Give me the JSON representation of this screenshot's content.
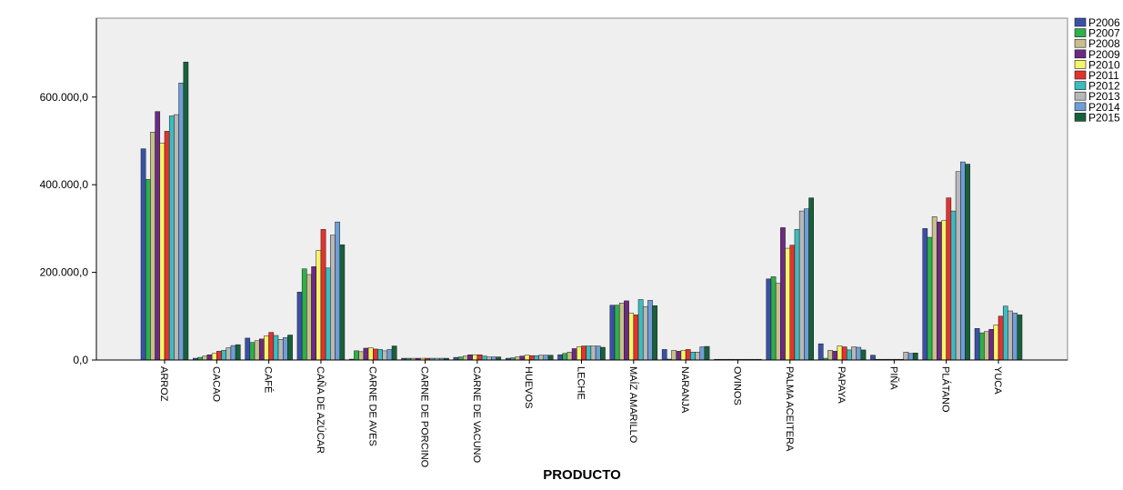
{
  "chart_data": {
    "type": "bar",
    "title": "",
    "xlabel": "PRODUCTO",
    "ylabel": "",
    "ylim": [
      0,
      780000
    ],
    "yticks": [
      0,
      200000,
      400000,
      600000
    ],
    "ytick_labels": [
      "0,0",
      "200.000,0",
      "400.000,0",
      "600.000,0"
    ],
    "grid": false,
    "legend_position": "top-right",
    "categories": [
      "ARROZ",
      "CACAO",
      "CAFÉ",
      "CAÑA DE AZÚCAR",
      "CARNE DE AVES",
      "CARNE DE PORCINO",
      "CARNE DE VACUNO",
      "HUEVOS",
      "LECHE",
      "MAÍZ AMARILLO",
      "NARANJA",
      "OVINOS",
      "PALMA ACEITERA",
      "PAPAYA",
      "PIÑA",
      "PLÁTANO",
      "YUCA"
    ],
    "series": [
      {
        "name": "P2006",
        "color": "#3a50a8",
        "values": [
          482000,
          4000,
          50000,
          155000,
          2000,
          4000,
          6000,
          4000,
          12000,
          125000,
          24000,
          1000,
          185000,
          37000,
          11000,
          300000,
          72000
        ]
      },
      {
        "name": "P2007",
        "color": "#2db04a",
        "values": [
          412000,
          6000,
          40000,
          208000,
          21000,
          4000,
          7000,
          5000,
          15000,
          125000,
          2000,
          1000,
          190000,
          4000,
          1000,
          280000,
          62000
        ]
      },
      {
        "name": "P2008",
        "color": "#c6c08e",
        "values": [
          520000,
          9000,
          44000,
          195000,
          19000,
          4000,
          9000,
          7000,
          18000,
          130000,
          22000,
          1000,
          175000,
          22000,
          1000,
          327000,
          65000
        ]
      },
      {
        "name": "P2009",
        "color": "#6d2a82",
        "values": [
          567000,
          12000,
          48000,
          213000,
          27000,
          4000,
          12000,
          9000,
          26000,
          135000,
          20000,
          1000,
          302000,
          20000,
          1000,
          315000,
          70000
        ]
      },
      {
        "name": "P2010",
        "color": "#f7f36b",
        "values": [
          495000,
          15000,
          55000,
          250000,
          28000,
          4000,
          12000,
          11000,
          30000,
          107000,
          22000,
          1000,
          255000,
          32000,
          1000,
          318000,
          80000
        ]
      },
      {
        "name": "P2011",
        "color": "#e4322d",
        "values": [
          522000,
          20000,
          63000,
          298000,
          25000,
          4000,
          12000,
          10000,
          32000,
          103000,
          24000,
          1000,
          262000,
          30000,
          1000,
          370000,
          100000
        ]
      },
      {
        "name": "P2012",
        "color": "#3cbcc0",
        "values": [
          557000,
          22000,
          56000,
          210000,
          24000,
          4000,
          9000,
          10000,
          32000,
          138000,
          18000,
          1000,
          298000,
          23000,
          1000,
          340000,
          123000
        ]
      },
      {
        "name": "P2013",
        "color": "#b8b8b8",
        "values": [
          560000,
          28000,
          47000,
          285000,
          21000,
          4000,
          7000,
          11000,
          32000,
          122000,
          18000,
          1000,
          340000,
          30000,
          18000,
          430000,
          112000
        ]
      },
      {
        "name": "P2014",
        "color": "#6f9ed6",
        "values": [
          632000,
          33000,
          51000,
          315000,
          24000,
          4000,
          7000,
          11000,
          32000,
          136000,
          30000,
          1000,
          345000,
          29000,
          15000,
          452000,
          107000
        ]
      },
      {
        "name": "P2015",
        "color": "#17613a",
        "values": [
          680000,
          35000,
          57000,
          263000,
          32000,
          4000,
          7000,
          11000,
          29000,
          124000,
          31000,
          1000,
          370000,
          23000,
          16000,
          447000,
          103000
        ]
      }
    ]
  }
}
